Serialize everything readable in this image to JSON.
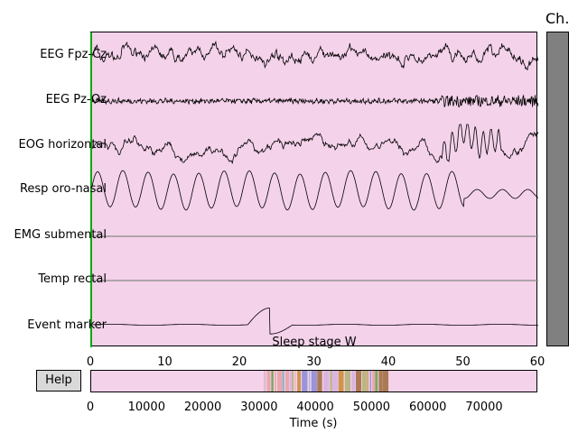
{
  "window": {
    "scrollbar_title": "Ch.",
    "help_label": "Help",
    "annotation_label": "Sleep stage W"
  },
  "chart_data": [
    {
      "type": "line",
      "title": "",
      "xlabel": "",
      "ylabel": "",
      "xlim": [
        0,
        60
      ],
      "x_ticks": [
        "0",
        "10",
        "20",
        "30",
        "40",
        "50",
        "60"
      ],
      "channels": [
        {
          "name": "EEG Fpz-Cz",
          "signal": "eeg-large"
        },
        {
          "name": "EEG Pz-Oz",
          "signal": "eeg-small"
        },
        {
          "name": "EOG horizontal",
          "signal": "eog"
        },
        {
          "name": "Resp oro-nasal",
          "signal": "respiration"
        },
        {
          "name": "EMG submental",
          "signal": "flat"
        },
        {
          "name": "Temp rectal",
          "signal": "flat"
        },
        {
          "name": "Event marker",
          "signal": "event"
        }
      ],
      "annotation": {
        "label": "Sleep stage W",
        "x_start": 0,
        "x_end": 60
      },
      "background_color": "#f4d2ea",
      "cursor_color": "#00aa00"
    },
    {
      "type": "overview",
      "xlabel": "Time (s)",
      "xlim": [
        0,
        79500
      ],
      "x_ticks": [
        "0",
        "10000",
        "20000",
        "30000",
        "40000",
        "50000",
        "60000",
        "70000"
      ],
      "annotated_range": [
        30700,
        52500
      ],
      "background_color": "#f4d2ea"
    }
  ]
}
